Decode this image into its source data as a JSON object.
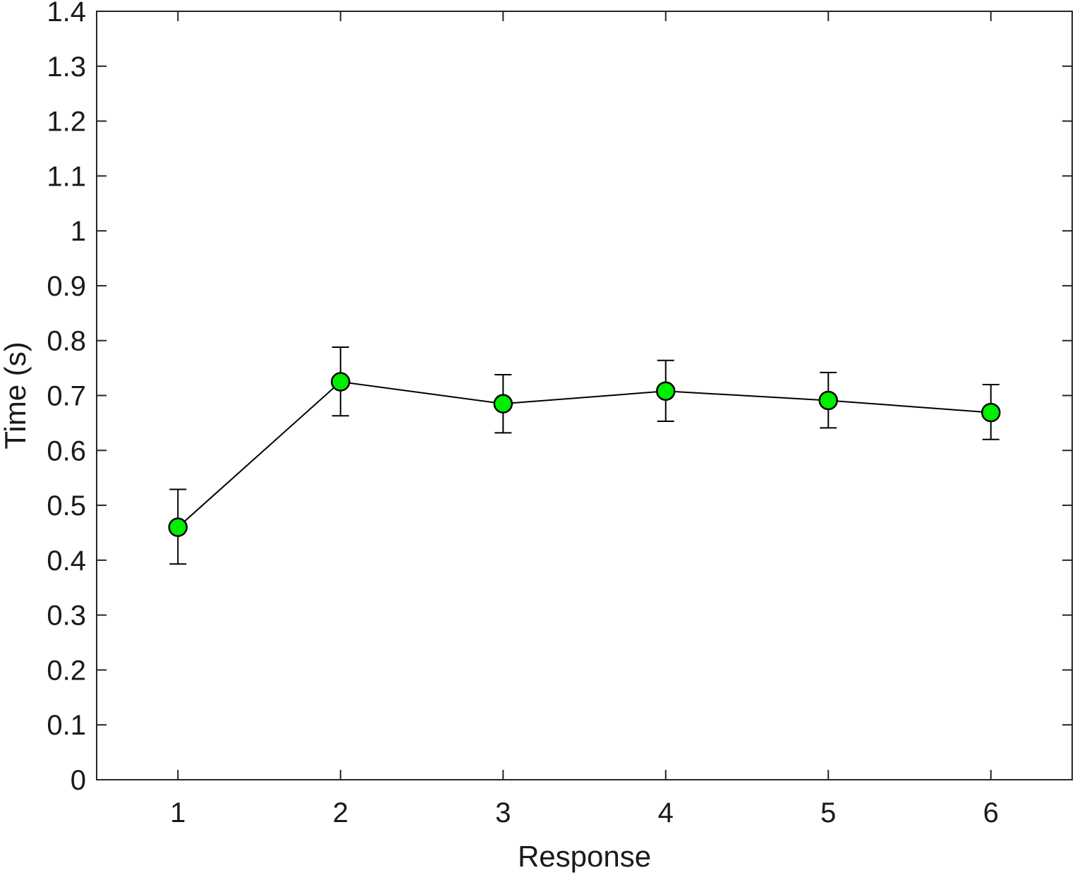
{
  "chart_data": {
    "type": "line",
    "title": "",
    "xlabel": "Response",
    "ylabel": "Time (s)",
    "xlim": [
      0.5,
      6.5
    ],
    "ylim": [
      0,
      1.4
    ],
    "x_ticks": [
      1,
      2,
      3,
      4,
      5,
      6
    ],
    "x_tick_labels": [
      "1",
      "2",
      "3",
      "4",
      "5",
      "6"
    ],
    "y_ticks": [
      0,
      0.1,
      0.2,
      0.3,
      0.4,
      0.5,
      0.6,
      0.7,
      0.8,
      0.9,
      1,
      1.1,
      1.2,
      1.3,
      1.4
    ],
    "y_tick_labels": [
      "0",
      "0.1",
      "0.2",
      "0.3",
      "0.4",
      "0.5",
      "0.6",
      "0.7",
      "0.8",
      "0.9",
      "1",
      "1.1",
      "1.2",
      "1.3",
      "1.4"
    ],
    "grid": false,
    "legend": "none",
    "series": [
      {
        "x": [
          1,
          2,
          3,
          4,
          5,
          6
        ],
        "values": [
          0.46,
          0.725,
          0.685,
          0.708,
          0.691,
          0.669
        ],
        "error_low": [
          0.393,
          0.663,
          0.632,
          0.653,
          0.641,
          0.62
        ],
        "error_high": [
          0.529,
          0.788,
          0.738,
          0.764,
          0.742,
          0.72
        ],
        "line_color": "#000000",
        "marker": "circle",
        "marker_color": "#00ee00",
        "marker_edge_color": "#000000"
      }
    ]
  }
}
